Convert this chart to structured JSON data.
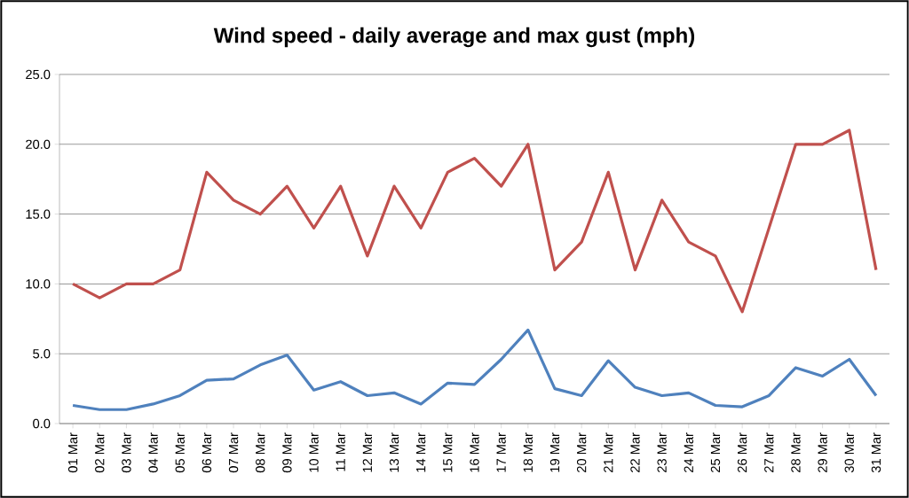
{
  "chart_data": {
    "type": "line",
    "title": "Wind speed - daily average and max gust (mph)",
    "categories": [
      "01 Mar",
      "02 Mar",
      "03 Mar",
      "04 Mar",
      "05 Mar",
      "06 Mar",
      "07 Mar",
      "08 Mar",
      "09 Mar",
      "10 Mar",
      "11 Mar",
      "12 Mar",
      "13 Mar",
      "14 Mar",
      "15 Mar",
      "16 Mar",
      "17 Mar",
      "18 Mar",
      "19 Mar",
      "20 Mar",
      "21 Mar",
      "22 Mar",
      "23 Mar",
      "24 Mar",
      "25 Mar",
      "26 Mar",
      "27 Mar",
      "28 Mar",
      "29 Mar",
      "30 Mar",
      "31 Mar"
    ],
    "series": [
      {
        "color": "#c0504d",
        "values": [
          10,
          9,
          10,
          10,
          11,
          18,
          16,
          15,
          17,
          14,
          17,
          12,
          17,
          14,
          18,
          19,
          17,
          20,
          11,
          13,
          18,
          11,
          16,
          13,
          12,
          8,
          14,
          20,
          20,
          21,
          11
        ]
      },
      {
        "color": "#4f81bd",
        "values": [
          1.3,
          1.0,
          1.0,
          1.4,
          2.0,
          3.1,
          3.2,
          4.2,
          4.9,
          2.4,
          3.0,
          2.0,
          2.2,
          1.4,
          2.9,
          2.8,
          4.6,
          6.7,
          2.5,
          2.0,
          4.5,
          2.6,
          2.0,
          2.2,
          1.3,
          1.2,
          2.0,
          4.0,
          3.4,
          4.6,
          2.0
        ]
      }
    ],
    "ylim": [
      0,
      25
    ],
    "yticks": [
      {
        "value": 0,
        "label": "0.0"
      },
      {
        "value": 5,
        "label": "5.0"
      },
      {
        "value": 10,
        "label": "10.0"
      },
      {
        "value": 15,
        "label": "15.0"
      },
      {
        "value": 20,
        "label": "20.0"
      },
      {
        "value": 25,
        "label": "25.0"
      }
    ],
    "grid": "y",
    "legend": false,
    "marker": "none",
    "line_style": "solid"
  }
}
